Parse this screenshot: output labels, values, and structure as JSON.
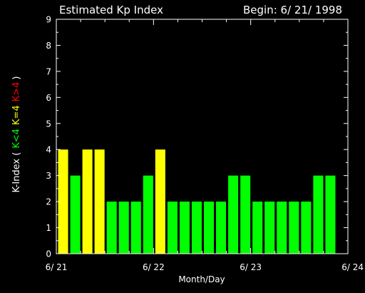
{
  "header": {
    "title": "Estimated Kp Index",
    "begin": "Begin: 6/ 21/ 1998"
  },
  "ylabel": {
    "prefix": "K-Index (",
    "low": "K<4",
    "mid": "K=4",
    "high": "K>4",
    "suffix": ")"
  },
  "colors": {
    "background": "#000000",
    "axis": "#ffffff",
    "low": "#00ff00",
    "mid": "#ffff00",
    "high": "#ff0000"
  },
  "chart_data": {
    "type": "bar",
    "title": "Estimated Kp Index",
    "xlabel": "Month/Day",
    "ylabel": "K-Index ( K<4 K=4 K>4 )",
    "ylim": [
      0,
      9
    ],
    "yticks": [
      "0",
      "1",
      "2",
      "3",
      "4",
      "5",
      "6",
      "7",
      "8",
      "9"
    ],
    "xlim": [
      0,
      72
    ],
    "xticks": [
      {
        "hour": 0,
        "label": "6/ 21"
      },
      {
        "hour": 24,
        "label": "6/ 22"
      },
      {
        "hour": 48,
        "label": "6/ 23"
      },
      {
        "hour": 72,
        "label": "6/ 24"
      }
    ],
    "bar_interval_hours": 3,
    "values": [
      4,
      3,
      4,
      4,
      2,
      2,
      2,
      3,
      4,
      2,
      2,
      2,
      2,
      2,
      3,
      3,
      2,
      2,
      2,
      2,
      2,
      3,
      3
    ]
  }
}
